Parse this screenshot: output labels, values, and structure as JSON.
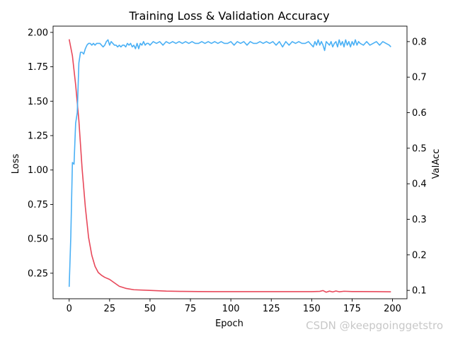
{
  "chart_data": {
    "type": "line",
    "title": "Training Loss & Validation Accuracy",
    "xlabel": "Epoch",
    "ylabel_left": "Loss",
    "ylabel_right": "ValAcc",
    "xlim": [
      -9.95,
      208.95
    ],
    "ylim_left": [
      0.0645,
      2.0455
    ],
    "ylim_right": [
      0.0765,
      0.8435
    ],
    "x_ticks": [
      0,
      25,
      50,
      75,
      100,
      125,
      150,
      175,
      200
    ],
    "y_left_ticks": [
      0.25,
      0.5,
      0.75,
      1.0,
      1.25,
      1.5,
      1.75,
      2.0
    ],
    "y_left_tick_labels": [
      "0.25",
      "0.50",
      "0.75",
      "1.00",
      "1.25",
      "1.50",
      "1.75",
      "2.00"
    ],
    "y_right_ticks": [
      0.1,
      0.2,
      0.3,
      0.4,
      0.5,
      0.6,
      0.7,
      0.8
    ],
    "y_right_tick_labels": [
      "0.1",
      "0.2",
      "0.3",
      "0.4",
      "0.5",
      "0.6",
      "0.7",
      "0.8"
    ],
    "grid": false,
    "legend": "none",
    "series": [
      {
        "axis": "left",
        "color": "#e8485a",
        "x": [
          0,
          2,
          4,
          6,
          8,
          10,
          12,
          14,
          16,
          18,
          20,
          22,
          25,
          28,
          31,
          35,
          40,
          50,
          60,
          70,
          80,
          90,
          100,
          110,
          120,
          130,
          140,
          150,
          155,
          157,
          159,
          161,
          163,
          165,
          167,
          170,
          175,
          180,
          190,
          199
        ],
        "values": [
          1.95,
          1.83,
          1.62,
          1.36,
          1.01,
          0.73,
          0.51,
          0.38,
          0.3,
          0.255,
          0.235,
          0.22,
          0.205,
          0.18,
          0.155,
          0.14,
          0.13,
          0.125,
          0.12,
          0.118,
          0.117,
          0.116,
          0.116,
          0.116,
          0.116,
          0.116,
          0.116,
          0.116,
          0.118,
          0.124,
          0.112,
          0.12,
          0.114,
          0.121,
          0.115,
          0.119,
          0.117,
          0.117,
          0.116,
          0.115
        ]
      },
      {
        "axis": "right",
        "color": "#4ab0f5",
        "x": [
          0,
          1,
          2,
          3,
          4,
          5,
          6,
          7,
          8,
          9,
          10,
          11,
          12,
          13,
          14,
          15,
          16,
          17,
          18,
          19,
          20,
          21,
          22,
          23,
          24,
          25,
          26,
          27,
          28,
          29,
          30,
          31,
          32,
          33,
          34,
          35,
          36,
          37,
          38,
          39,
          40,
          41,
          42,
          43,
          44,
          45,
          46,
          47,
          48,
          49,
          50,
          52,
          54,
          56,
          58,
          60,
          62,
          64,
          66,
          68,
          70,
          72,
          74,
          76,
          78,
          80,
          82,
          84,
          86,
          88,
          90,
          92,
          94,
          96,
          98,
          100,
          102,
          104,
          106,
          108,
          110,
          112,
          114,
          116,
          118,
          120,
          122,
          124,
          126,
          128,
          130,
          132,
          134,
          136,
          138,
          140,
          142,
          144,
          146,
          148,
          150,
          151,
          152,
          153,
          154,
          155,
          156,
          157,
          158,
          159,
          160,
          161,
          162,
          163,
          164,
          165,
          166,
          167,
          168,
          169,
          170,
          171,
          172,
          173,
          174,
          175,
          176,
          177,
          178,
          179,
          180,
          182,
          184,
          186,
          188,
          190,
          192,
          194,
          196,
          198,
          199
        ],
        "values": [
          0.11,
          0.25,
          0.46,
          0.455,
          0.57,
          0.6,
          0.74,
          0.77,
          0.77,
          0.765,
          0.78,
          0.79,
          0.795,
          0.795,
          0.79,
          0.795,
          0.79,
          0.795,
          0.795,
          0.795,
          0.79,
          0.785,
          0.79,
          0.8,
          0.805,
          0.79,
          0.8,
          0.795,
          0.79,
          0.79,
          0.785,
          0.79,
          0.785,
          0.79,
          0.79,
          0.785,
          0.795,
          0.79,
          0.795,
          0.785,
          0.79,
          0.78,
          0.795,
          0.78,
          0.795,
          0.79,
          0.8,
          0.79,
          0.795,
          0.795,
          0.79,
          0.8,
          0.795,
          0.8,
          0.79,
          0.8,
          0.795,
          0.8,
          0.795,
          0.8,
          0.795,
          0.8,
          0.795,
          0.8,
          0.795,
          0.795,
          0.8,
          0.795,
          0.8,
          0.795,
          0.8,
          0.795,
          0.8,
          0.795,
          0.795,
          0.8,
          0.79,
          0.8,
          0.795,
          0.8,
          0.79,
          0.8,
          0.795,
          0.795,
          0.8,
          0.795,
          0.8,
          0.795,
          0.8,
          0.79,
          0.8,
          0.785,
          0.8,
          0.79,
          0.8,
          0.795,
          0.8,
          0.795,
          0.795,
          0.8,
          0.79,
          0.785,
          0.8,
          0.79,
          0.805,
          0.79,
          0.8,
          0.79,
          0.775,
          0.8,
          0.795,
          0.79,
          0.8,
          0.785,
          0.795,
          0.8,
          0.785,
          0.805,
          0.79,
          0.8,
          0.785,
          0.805,
          0.79,
          0.8,
          0.785,
          0.8,
          0.79,
          0.805,
          0.79,
          0.8,
          0.795,
          0.79,
          0.8,
          0.79,
          0.795,
          0.8,
          0.79,
          0.8,
          0.795,
          0.79,
          0.785
        ]
      }
    ]
  },
  "watermark": "CSDN @keepgoinggetstro"
}
